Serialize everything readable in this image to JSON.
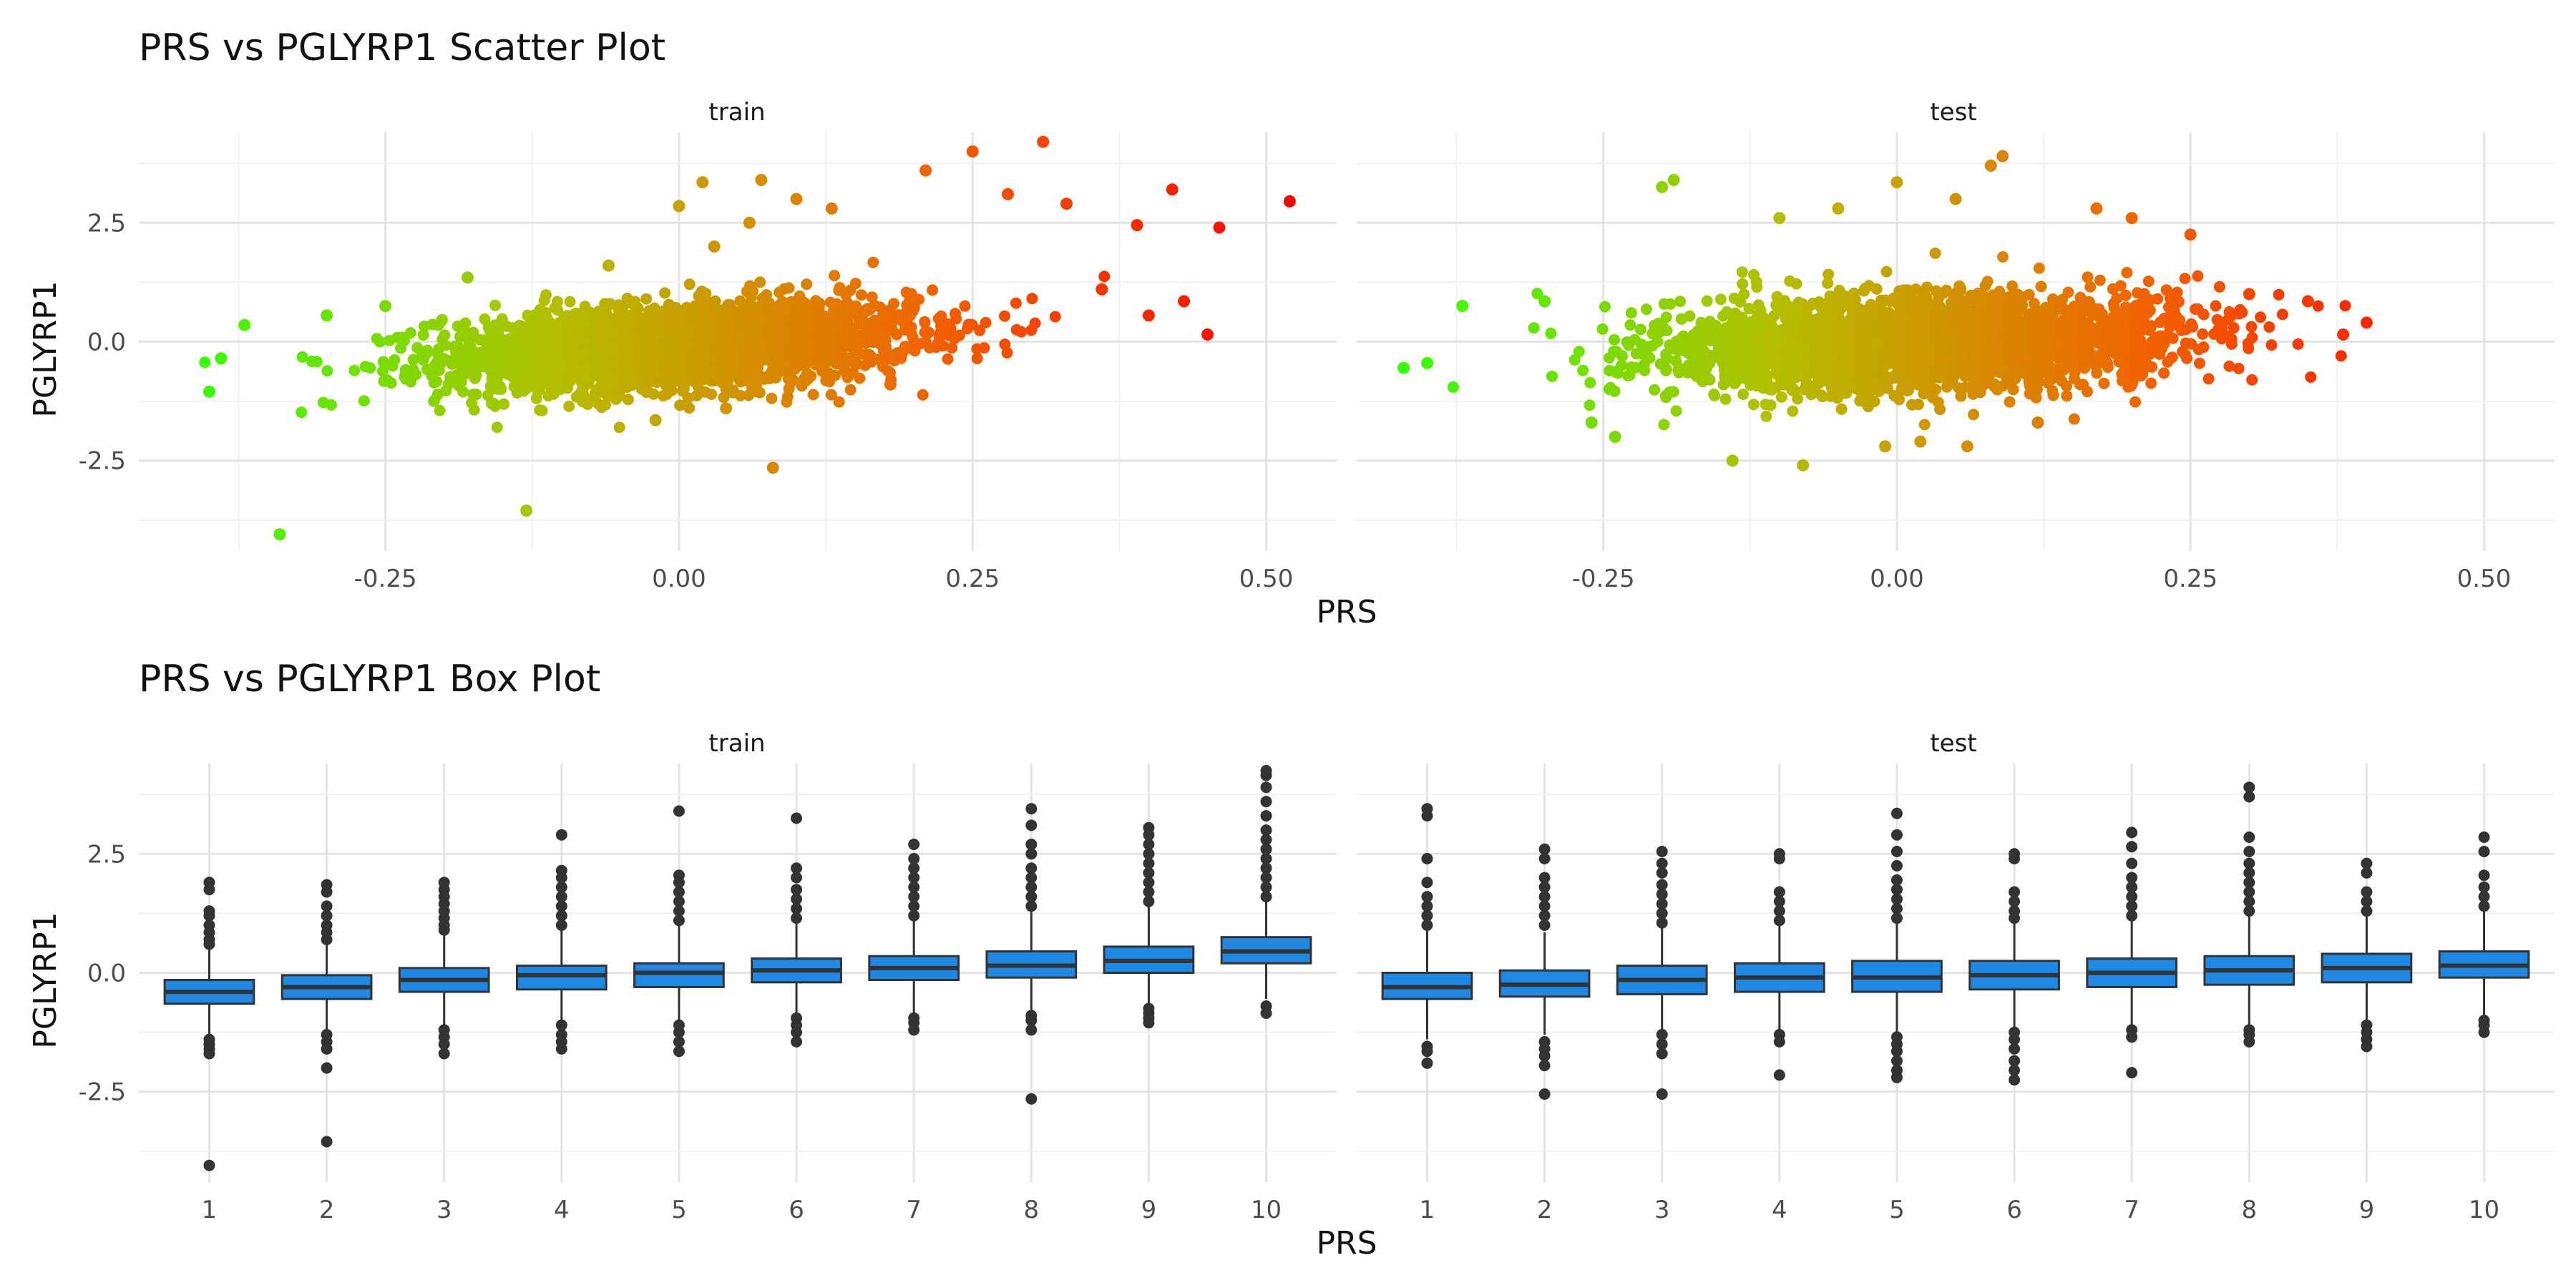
{
  "chart_data": [
    {
      "type": "scatter",
      "title": "PRS vs PGLYRP1 Scatter Plot",
      "xlabel": "PRS",
      "ylabel": "PGLYRP1",
      "color_gradient": [
        "#33ff00",
        "#b3bf00",
        "#f06400",
        "#ff0000"
      ],
      "grid": true,
      "facets": [
        {
          "name": "train",
          "xlim": [
            -0.46,
            0.56
          ],
          "ylim": [
            -4.4,
            4.4
          ],
          "x_ticks": [
            -0.25,
            0.0,
            0.25,
            0.5
          ],
          "x_tick_labels": [
            "-0.25",
            "0.00",
            "0.25",
            "0.50"
          ],
          "y_ticks": [
            -2.5,
            0.0,
            2.5
          ],
          "y_tick_labels": [
            "-2.5",
            "0.0",
            "2.5"
          ],
          "trend": {
            "slope": 3.0,
            "intercept": -0.1,
            "noise": 0.45
          },
          "points": [
            [
              -0.4,
              -1.05
            ],
            [
              -0.39,
              -0.35
            ],
            [
              -0.37,
              0.35
            ],
            [
              -0.34,
              -4.05
            ],
            [
              -0.3,
              0.55
            ],
            [
              -0.25,
              0.75
            ],
            [
              -0.18,
              1.35
            ],
            [
              -0.13,
              -3.55
            ],
            [
              -0.06,
              1.6
            ],
            [
              -0.02,
              -1.65
            ],
            [
              0.0,
              2.85
            ],
            [
              0.02,
              3.35
            ],
            [
              0.03,
              2.0
            ],
            [
              0.04,
              -1.4
            ],
            [
              0.06,
              2.5
            ],
            [
              0.07,
              3.4
            ],
            [
              0.08,
              -2.65
            ],
            [
              0.1,
              3.0
            ],
            [
              0.13,
              2.8
            ],
            [
              0.18,
              -0.9
            ],
            [
              0.21,
              3.6
            ],
            [
              0.25,
              4.0
            ],
            [
              0.28,
              3.1
            ],
            [
              0.31,
              4.2
            ],
            [
              0.33,
              2.9
            ],
            [
              0.36,
              1.1
            ],
            [
              0.39,
              2.45
            ],
            [
              0.4,
              0.55
            ],
            [
              0.42,
              3.2
            ],
            [
              0.43,
              0.85
            ],
            [
              0.45,
              0.15
            ],
            [
              0.46,
              2.4
            ],
            [
              0.52,
              2.95
            ]
          ]
        },
        {
          "name": "test",
          "xlim": [
            -0.46,
            0.56
          ],
          "ylim": [
            -4.4,
            4.4
          ],
          "x_ticks": [
            -0.25,
            0.0,
            0.25,
            0.5
          ],
          "x_tick_labels": [
            "-0.25",
            "0.00",
            "0.25",
            "0.50"
          ],
          "y_ticks": [
            -2.5,
            0.0,
            2.5
          ],
          "y_tick_labels": [
            "-2.5",
            "0.0",
            "2.5"
          ],
          "trend": {
            "slope": 1.7,
            "intercept": -0.05,
            "noise": 0.5
          },
          "points": [
            [
              -0.42,
              -0.55
            ],
            [
              -0.4,
              -0.45
            ],
            [
              -0.37,
              0.75
            ],
            [
              -0.3,
              0.85
            ],
            [
              -0.26,
              -1.7
            ],
            [
              -0.24,
              -2.0
            ],
            [
              -0.2,
              3.25
            ],
            [
              -0.19,
              3.4
            ],
            [
              -0.14,
              -2.5
            ],
            [
              -0.1,
              2.6
            ],
            [
              -0.08,
              -2.6
            ],
            [
              -0.05,
              2.8
            ],
            [
              -0.01,
              -2.2
            ],
            [
              0.0,
              3.35
            ],
            [
              0.02,
              -2.1
            ],
            [
              0.05,
              3.0
            ],
            [
              0.06,
              -2.2
            ],
            [
              0.08,
              3.7
            ],
            [
              0.09,
              3.9
            ],
            [
              0.12,
              -1.7
            ],
            [
              0.17,
              2.8
            ],
            [
              0.2,
              2.6
            ],
            [
              0.25,
              2.25
            ],
            [
              0.3,
              1.0
            ],
            [
              0.35,
              0.85
            ],
            [
              0.38,
              0.15
            ],
            [
              0.4,
              0.4
            ]
          ]
        }
      ]
    },
    {
      "type": "box",
      "title": "PRS vs PGLYRP1 Box Plot",
      "xlabel": "PRS",
      "ylabel": "PGLYRP1",
      "box_color": "#1e88e5",
      "grid": true,
      "facets": [
        {
          "name": "train",
          "categories": [
            "1",
            "2",
            "3",
            "4",
            "5",
            "6",
            "7",
            "8",
            "9",
            "10"
          ],
          "ylim": [
            -4.4,
            4.4
          ],
          "y_ticks": [
            -2.5,
            0.0,
            2.5
          ],
          "y_tick_labels": [
            "-2.5",
            "0.0",
            "2.5"
          ],
          "boxes": [
            {
              "q1": -0.65,
              "median": -0.4,
              "q3": -0.15,
              "low": -1.3,
              "high": 0.5,
              "outliers": [
                -1.4,
                -1.5,
                -1.6,
                -1.7,
                0.6,
                0.7,
                0.85,
                1.0,
                1.2,
                1.3,
                1.75,
                1.9,
                -4.05
              ]
            },
            {
              "q1": -0.55,
              "median": -0.3,
              "q3": -0.05,
              "low": -1.2,
              "high": 0.6,
              "outliers": [
                -1.3,
                -1.45,
                -1.6,
                -2.0,
                0.7,
                0.85,
                1.0,
                1.2,
                1.4,
                1.7,
                1.85,
                -3.55
              ]
            },
            {
              "q1": -0.4,
              "median": -0.15,
              "q3": 0.1,
              "low": -1.1,
              "high": 0.8,
              "outliers": [
                -1.2,
                -1.35,
                -1.5,
                -1.7,
                0.9,
                1.0,
                1.15,
                1.3,
                1.45,
                1.6,
                1.75,
                1.9
              ]
            },
            {
              "q1": -0.35,
              "median": -0.05,
              "q3": 0.15,
              "low": -1.0,
              "high": 0.9,
              "outliers": [
                -1.1,
                -1.3,
                -1.45,
                -1.6,
                1.0,
                1.2,
                1.4,
                1.6,
                1.8,
                2.0,
                2.15,
                2.9
              ]
            },
            {
              "q1": -0.3,
              "median": 0.0,
              "q3": 0.2,
              "low": -1.0,
              "high": 1.0,
              "outliers": [
                -1.1,
                -1.25,
                -1.45,
                -1.65,
                1.1,
                1.3,
                1.5,
                1.7,
                1.9,
                2.05,
                3.4
              ]
            },
            {
              "q1": -0.2,
              "median": 0.05,
              "q3": 0.3,
              "low": -0.85,
              "high": 1.05,
              "outliers": [
                -0.95,
                -1.1,
                -1.25,
                -1.45,
                1.15,
                1.35,
                1.55,
                1.75,
                2.0,
                2.2,
                3.25
              ]
            },
            {
              "q1": -0.15,
              "median": 0.1,
              "q3": 0.35,
              "low": -0.85,
              "high": 1.1,
              "outliers": [
                -0.95,
                -1.05,
                -1.2,
                1.2,
                1.4,
                1.6,
                1.8,
                2.0,
                2.2,
                2.4,
                2.7
              ]
            },
            {
              "q1": -0.1,
              "median": 0.15,
              "q3": 0.45,
              "low": -0.8,
              "high": 1.3,
              "outliers": [
                -0.9,
                -1.0,
                -1.2,
                1.4,
                1.6,
                1.8,
                2.0,
                2.2,
                2.5,
                2.7,
                3.1,
                3.45,
                -2.65
              ]
            },
            {
              "q1": 0.0,
              "median": 0.25,
              "q3": 0.55,
              "low": -0.65,
              "high": 1.4,
              "outliers": [
                -0.75,
                -0.85,
                -0.95,
                -1.05,
                1.5,
                1.7,
                1.9,
                2.1,
                2.3,
                2.5,
                2.7,
                2.9,
                3.05
              ]
            },
            {
              "q1": 0.2,
              "median": 0.45,
              "q3": 0.75,
              "low": -0.55,
              "high": 1.5,
              "outliers": [
                -0.7,
                -0.85,
                1.6,
                1.8,
                2.0,
                2.2,
                2.4,
                2.6,
                2.8,
                3.0,
                3.3,
                3.6,
                3.9,
                4.15,
                4.25
              ]
            }
          ]
        },
        {
          "name": "test",
          "categories": [
            "1",
            "2",
            "3",
            "4",
            "5",
            "6",
            "7",
            "8",
            "9",
            "10"
          ],
          "ylim": [
            -4.4,
            4.4
          ],
          "y_ticks": [
            -2.5,
            0.0,
            2.5
          ],
          "y_tick_labels": [
            "-2.5",
            "0.0",
            "2.5"
          ],
          "boxes": [
            {
              "q1": -0.55,
              "median": -0.3,
              "q3": 0.0,
              "low": -1.4,
              "high": 0.9,
              "outliers": [
                -1.55,
                -1.65,
                -1.9,
                1.0,
                1.2,
                1.4,
                1.6,
                1.9,
                2.4,
                3.3,
                3.45
              ]
            },
            {
              "q1": -0.5,
              "median": -0.25,
              "q3": 0.05,
              "low": -1.3,
              "high": 0.85,
              "outliers": [
                -1.45,
                -1.6,
                -1.75,
                -1.95,
                -2.55,
                1.0,
                1.2,
                1.4,
                1.6,
                1.8,
                2.0,
                2.4,
                2.6
              ]
            },
            {
              "q1": -0.45,
              "median": -0.15,
              "q3": 0.15,
              "low": -1.2,
              "high": 0.95,
              "outliers": [
                -1.3,
                -1.5,
                -1.7,
                -2.55,
                1.05,
                1.25,
                1.45,
                1.65,
                1.85,
                2.1,
                2.3,
                2.55
              ]
            },
            {
              "q1": -0.4,
              "median": -0.1,
              "q3": 0.2,
              "low": -1.2,
              "high": 1.0,
              "outliers": [
                -1.3,
                -1.45,
                -2.15,
                1.1,
                1.3,
                1.5,
                1.7,
                2.4,
                2.5
              ]
            },
            {
              "q1": -0.4,
              "median": -0.1,
              "q3": 0.25,
              "low": -1.25,
              "high": 1.05,
              "outliers": [
                -1.35,
                -1.5,
                -1.65,
                -1.85,
                -2.05,
                -2.2,
                1.15,
                1.35,
                1.55,
                1.75,
                1.95,
                2.25,
                2.55,
                2.9,
                3.35
              ]
            },
            {
              "q1": -0.35,
              "median": -0.05,
              "q3": 0.25,
              "low": -1.15,
              "high": 1.05,
              "outliers": [
                -1.25,
                -1.4,
                -1.6,
                -1.85,
                -2.05,
                -2.25,
                1.15,
                1.3,
                1.5,
                1.7,
                2.4,
                2.5
              ]
            },
            {
              "q1": -0.3,
              "median": 0.0,
              "q3": 0.3,
              "low": -1.1,
              "high": 1.1,
              "outliers": [
                -1.2,
                -1.35,
                -2.1,
                1.2,
                1.4,
                1.6,
                1.8,
                2.0,
                2.3,
                2.65,
                2.95
              ]
            },
            {
              "q1": -0.25,
              "median": 0.05,
              "q3": 0.35,
              "low": -1.1,
              "high": 1.2,
              "outliers": [
                -1.2,
                -1.3,
                -1.45,
                1.3,
                1.5,
                1.7,
                1.9,
                2.1,
                2.3,
                2.55,
                2.85,
                3.7,
                3.9
              ]
            },
            {
              "q1": -0.2,
              "median": 0.1,
              "q3": 0.4,
              "low": -1.0,
              "high": 1.2,
              "outliers": [
                -1.1,
                -1.25,
                -1.4,
                -1.55,
                1.3,
                1.5,
                1.7,
                2.1,
                2.3
              ]
            },
            {
              "q1": -0.1,
              "median": 0.15,
              "q3": 0.45,
              "low": -0.9,
              "high": 1.3,
              "outliers": [
                -1.0,
                -1.1,
                -1.25,
                1.4,
                1.6,
                1.8,
                2.05,
                2.55,
                2.85
              ]
            }
          ]
        }
      ]
    }
  ]
}
